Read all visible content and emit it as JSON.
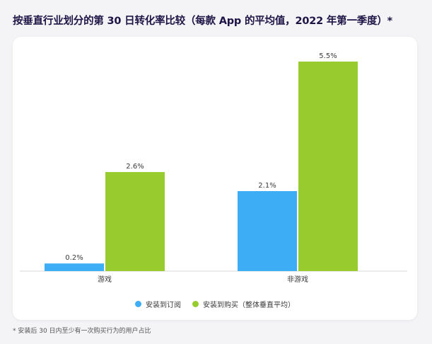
{
  "title": "按垂直行业划分的第 30 日转化率比较（每款 App 的平均值，2022 年第一季度）*",
  "footnote": "* 安装后 30 日内至少有一次购买行为的用户占比",
  "colors": {
    "subscription": "#3daef6",
    "purchase": "#98cc2e",
    "axis": "#d7d7d7",
    "title": "#1f1446"
  },
  "chart_data": {
    "type": "bar",
    "title": "按垂直行业划分的第 30 日转化率比较（每款 App 的平均值，2022 年第一季度）*",
    "categories": [
      "游戏",
      "非游戏"
    ],
    "series": [
      {
        "name": "安装到订阅",
        "values": [
          0.2,
          2.1
        ],
        "labels": [
          "0.2%",
          "2.1%"
        ]
      },
      {
        "name": "安装到购买（整体垂直平均）",
        "values": [
          2.6,
          5.5
        ],
        "labels": [
          "2.6%",
          "5.5%"
        ]
      }
    ],
    "unit": "%",
    "ylim": [
      0,
      5.5
    ],
    "grid": false,
    "legend_position": "bottom-center",
    "xlabel": "",
    "ylabel": ""
  }
}
